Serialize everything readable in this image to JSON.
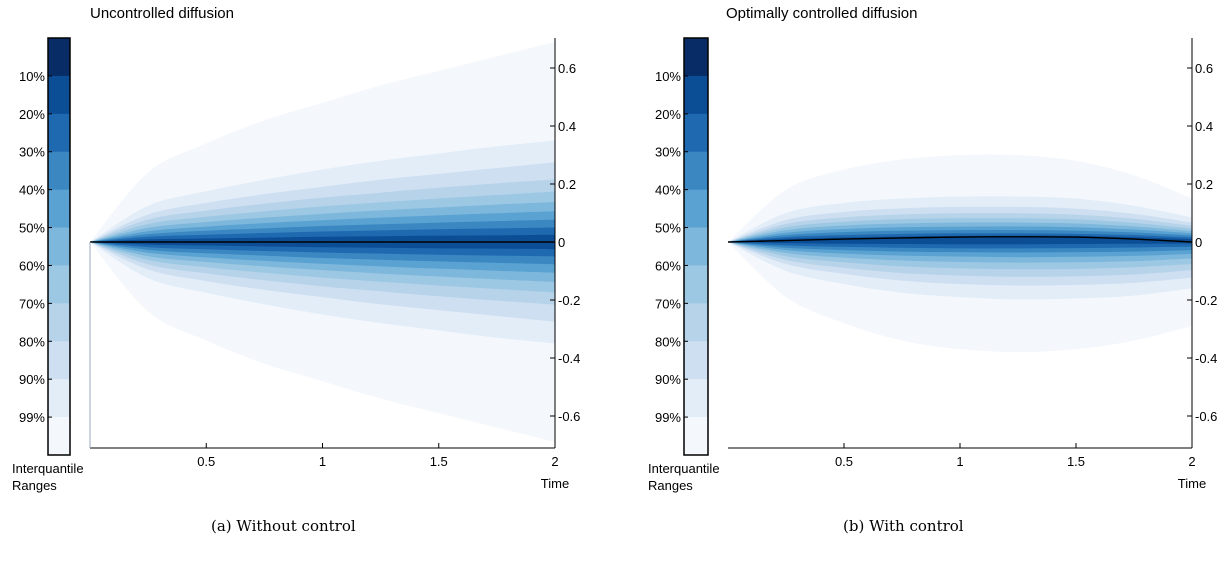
{
  "colors": {
    "bands": [
      "#f4f8fd",
      "#e3edf8",
      "#cddff1",
      "#b6d3ea",
      "#9dc8e3",
      "#7db7dc",
      "#5aa2d1",
      "#3b87c2",
      "#1f69b0",
      "#0b4e96",
      "#082d66"
    ],
    "median": "#000000"
  },
  "chart_data": [
    {
      "type": "area",
      "title": "Uncontrolled diffusion",
      "xlabel": "Time",
      "ylabel": "",
      "xlim": [
        0,
        2
      ],
      "ylim": [
        -0.7,
        0.7
      ],
      "x_ticks": [
        0.5,
        1,
        1.5,
        2
      ],
      "x_tick_labels": [
        "0.5",
        "1",
        "1.5",
        "2"
      ],
      "y_ticks": [
        0.6,
        0.4,
        0.2,
        0,
        -0.2,
        -0.4,
        -0.6
      ],
      "y_tick_labels": [
        "0.6",
        "0.4",
        "0.2",
        "0",
        "-0.2",
        "-0.4",
        "-0.6"
      ],
      "y_axis_side": "right",
      "grid": false,
      "legend": {
        "position": "left",
        "title_lines": [
          "Interquantile",
          "Ranges"
        ],
        "ranges": [
          "10%",
          "20%",
          "30%",
          "40%",
          "50%",
          "60%",
          "70%",
          "80%",
          "90%",
          "99%"
        ]
      },
      "x": [
        0,
        0.25,
        0.5,
        0.75,
        1,
        1.25,
        1.5,
        1.75,
        2
      ],
      "median": [
        0,
        0,
        0,
        0,
        0,
        0,
        0,
        0,
        0
      ],
      "bands": [
        {
          "range": "99%",
          "upper": [
            0,
            0.24,
            0.34,
            0.42,
            0.48,
            0.54,
            0.59,
            0.64,
            0.69
          ],
          "lower": [
            0,
            -0.24,
            -0.34,
            -0.42,
            -0.48,
            -0.54,
            -0.59,
            -0.64,
            -0.69
          ]
        },
        {
          "range": "90%",
          "upper": [
            0,
            0.125,
            0.175,
            0.215,
            0.25,
            0.28,
            0.305,
            0.33,
            0.35
          ],
          "lower": [
            0,
            -0.125,
            -0.175,
            -0.215,
            -0.25,
            -0.28,
            -0.305,
            -0.33,
            -0.35
          ]
        },
        {
          "range": "80%",
          "upper": [
            0,
            0.095,
            0.135,
            0.165,
            0.19,
            0.215,
            0.235,
            0.255,
            0.275
          ],
          "lower": [
            0,
            -0.095,
            -0.135,
            -0.165,
            -0.19,
            -0.215,
            -0.235,
            -0.255,
            -0.275
          ]
        },
        {
          "range": "70%",
          "upper": [
            0,
            0.077,
            0.108,
            0.132,
            0.153,
            0.17,
            0.187,
            0.202,
            0.216
          ],
          "lower": [
            0,
            -0.077,
            -0.108,
            -0.132,
            -0.153,
            -0.17,
            -0.187,
            -0.202,
            -0.216
          ]
        },
        {
          "range": "60%",
          "upper": [
            0,
            0.062,
            0.087,
            0.106,
            0.123,
            0.137,
            0.15,
            0.162,
            0.174
          ],
          "lower": [
            0,
            -0.062,
            -0.087,
            -0.106,
            -0.123,
            -0.137,
            -0.15,
            -0.162,
            -0.174
          ]
        },
        {
          "range": "50%",
          "upper": [
            0,
            0.049,
            0.069,
            0.084,
            0.097,
            0.109,
            0.119,
            0.129,
            0.138
          ],
          "lower": [
            0,
            -0.049,
            -0.069,
            -0.084,
            -0.097,
            -0.109,
            -0.119,
            -0.129,
            -0.138
          ]
        },
        {
          "range": "40%",
          "upper": [
            0,
            0.037,
            0.053,
            0.065,
            0.075,
            0.084,
            0.092,
            0.099,
            0.106
          ],
          "lower": [
            0,
            -0.037,
            -0.053,
            -0.065,
            -0.075,
            -0.084,
            -0.092,
            -0.099,
            -0.106
          ]
        },
        {
          "range": "30%",
          "upper": [
            0,
            0.027,
            0.039,
            0.047,
            0.055,
            0.061,
            0.067,
            0.072,
            0.077
          ],
          "lower": [
            0,
            -0.027,
            -0.039,
            -0.047,
            -0.055,
            -0.061,
            -0.067,
            -0.072,
            -0.077
          ]
        },
        {
          "range": "20%",
          "upper": [
            0,
            0.018,
            0.025,
            0.031,
            0.036,
            0.04,
            0.044,
            0.047,
            0.05
          ],
          "lower": [
            0,
            -0.018,
            -0.025,
            -0.031,
            -0.036,
            -0.04,
            -0.044,
            -0.047,
            -0.05
          ]
        },
        {
          "range": "10%",
          "upper": [
            0,
            0.009,
            0.012,
            0.015,
            0.018,
            0.02,
            0.022,
            0.023,
            0.025
          ],
          "lower": [
            0,
            -0.009,
            -0.012,
            -0.015,
            -0.018,
            -0.02,
            -0.022,
            -0.023,
            -0.025
          ]
        }
      ],
      "caption": "(a) Without control"
    },
    {
      "type": "area",
      "title": "Optimally controlled diffusion",
      "xlabel": "Time",
      "ylabel": "",
      "xlim": [
        0,
        2
      ],
      "ylim": [
        -0.7,
        0.7
      ],
      "x_ticks": [
        0.5,
        1,
        1.5,
        2
      ],
      "x_tick_labels": [
        "0.5",
        "1",
        "1.5",
        "2"
      ],
      "y_ticks": [
        0.6,
        0.4,
        0.2,
        0,
        -0.2,
        -0.4,
        -0.6
      ],
      "y_tick_labels": [
        "0.6",
        "0.4",
        "0.2",
        "0",
        "-0.2",
        "-0.4",
        "-0.6"
      ],
      "y_axis_side": "right",
      "grid": false,
      "legend": {
        "position": "left",
        "title_lines": [
          "Interquantile",
          "Ranges"
        ],
        "ranges": [
          "10%",
          "20%",
          "30%",
          "40%",
          "50%",
          "60%",
          "70%",
          "80%",
          "90%",
          "99%"
        ]
      },
      "x": [
        0,
        0.25,
        0.5,
        0.75,
        1,
        1.25,
        1.5,
        1.75,
        2
      ],
      "median": [
        0,
        0.005,
        0.01,
        0.014,
        0.017,
        0.018,
        0.017,
        0.01,
        0
      ],
      "bands": [
        {
          "range": "99%",
          "upper": [
            0,
            0.18,
            0.25,
            0.285,
            0.3,
            0.3,
            0.28,
            0.23,
            0.15
          ],
          "lower": [
            0,
            -0.19,
            -0.28,
            -0.34,
            -0.37,
            -0.38,
            -0.37,
            -0.34,
            -0.29
          ]
        },
        {
          "range": "90%",
          "upper": [
            0,
            0.1,
            0.135,
            0.15,
            0.157,
            0.157,
            0.15,
            0.125,
            0.085
          ],
          "lower": [
            0,
            -0.1,
            -0.145,
            -0.175,
            -0.19,
            -0.198,
            -0.195,
            -0.185,
            -0.16
          ]
        },
        {
          "range": "80%",
          "upper": [
            0,
            0.076,
            0.104,
            0.116,
            0.121,
            0.121,
            0.115,
            0.097,
            0.067
          ],
          "lower": [
            0,
            -0.076,
            -0.11,
            -0.133,
            -0.145,
            -0.15,
            -0.148,
            -0.141,
            -0.123
          ]
        },
        {
          "range": "70%",
          "upper": [
            0,
            0.062,
            0.085,
            0.095,
            0.099,
            0.099,
            0.094,
            0.08,
            0.056
          ],
          "lower": [
            0,
            -0.062,
            -0.089,
            -0.107,
            -0.116,
            -0.12,
            -0.118,
            -0.112,
            -0.097
          ]
        },
        {
          "range": "60%",
          "upper": [
            0,
            0.051,
            0.07,
            0.079,
            0.082,
            0.082,
            0.078,
            0.066,
            0.046
          ],
          "lower": [
            0,
            -0.049,
            -0.07,
            -0.084,
            -0.091,
            -0.094,
            -0.093,
            -0.087,
            -0.076
          ]
        },
        {
          "range": "50%",
          "upper": [
            0,
            0.041,
            0.057,
            0.064,
            0.067,
            0.067,
            0.064,
            0.054,
            0.038
          ],
          "lower": [
            0,
            -0.038,
            -0.054,
            -0.064,
            -0.069,
            -0.071,
            -0.07,
            -0.066,
            -0.057
          ]
        },
        {
          "range": "40%",
          "upper": [
            0,
            0.032,
            0.045,
            0.051,
            0.053,
            0.054,
            0.051,
            0.043,
            0.03
          ],
          "lower": [
            0,
            -0.028,
            -0.04,
            -0.047,
            -0.05,
            -0.052,
            -0.051,
            -0.048,
            -0.041
          ]
        },
        {
          "range": "30%",
          "upper": [
            0,
            0.024,
            0.034,
            0.039,
            0.041,
            0.041,
            0.039,
            0.033,
            0.023
          ],
          "lower": [
            0,
            -0.02,
            -0.028,
            -0.033,
            -0.035,
            -0.036,
            -0.035,
            -0.033,
            -0.028
          ]
        },
        {
          "range": "20%",
          "upper": [
            0,
            0.017,
            0.024,
            0.028,
            0.03,
            0.03,
            0.028,
            0.024,
            0.016
          ],
          "lower": [
            0,
            -0.012,
            -0.017,
            -0.02,
            -0.022,
            -0.022,
            -0.021,
            -0.019,
            -0.016
          ]
        },
        {
          "range": "10%",
          "upper": [
            0,
            0.011,
            0.016,
            0.019,
            0.021,
            0.022,
            0.021,
            0.017,
            0.01
          ],
          "lower": [
            0,
            -0.004,
            -0.006,
            -0.007,
            -0.008,
            -0.008,
            -0.007,
            -0.006,
            -0.005
          ]
        }
      ],
      "caption": "(b) With control"
    }
  ]
}
